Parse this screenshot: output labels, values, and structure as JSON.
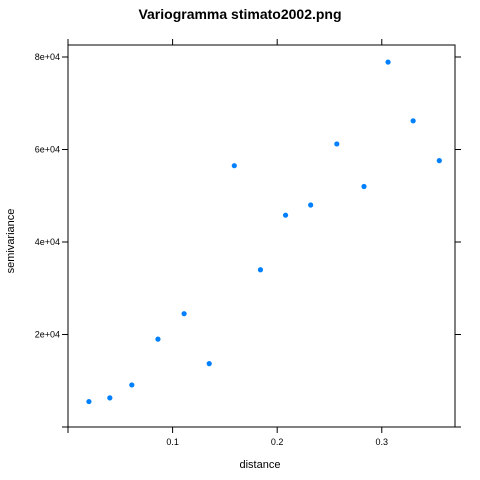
{
  "chart_data": {
    "type": "scatter",
    "title": "Variogramma stimato2002.png",
    "xlabel": "distance",
    "ylabel": "semivariance",
    "x_ticks": [
      {
        "value": 0.1,
        "label": "0.1"
      },
      {
        "value": 0.2,
        "label": "0.2"
      },
      {
        "value": 0.3,
        "label": "0.3"
      }
    ],
    "y_ticks": [
      {
        "value": 20000,
        "label": "2e+04"
      },
      {
        "value": 40000,
        "label": "4e+04"
      },
      {
        "value": 60000,
        "label": "6e+04"
      },
      {
        "value": 80000,
        "label": "8e+04"
      }
    ],
    "xlim": [
      0,
      0.37
    ],
    "ylim": [
      0,
      80000
    ],
    "grid": false,
    "point_color": "#0080ff",
    "points": [
      {
        "x": 0.02,
        "y": 5500
      },
      {
        "x": 0.04,
        "y": 6300
      },
      {
        "x": 0.061,
        "y": 9100
      },
      {
        "x": 0.086,
        "y": 19000
      },
      {
        "x": 0.111,
        "y": 24500
      },
      {
        "x": 0.135,
        "y": 13700
      },
      {
        "x": 0.159,
        "y": 56500
      },
      {
        "x": 0.184,
        "y": 34000
      },
      {
        "x": 0.208,
        "y": 45800
      },
      {
        "x": 0.232,
        "y": 48000
      },
      {
        "x": 0.257,
        "y": 61200
      },
      {
        "x": 0.283,
        "y": 52000
      },
      {
        "x": 0.306,
        "y": 78900
      },
      {
        "x": 0.33,
        "y": 66200
      },
      {
        "x": 0.355,
        "y": 57600
      }
    ]
  }
}
